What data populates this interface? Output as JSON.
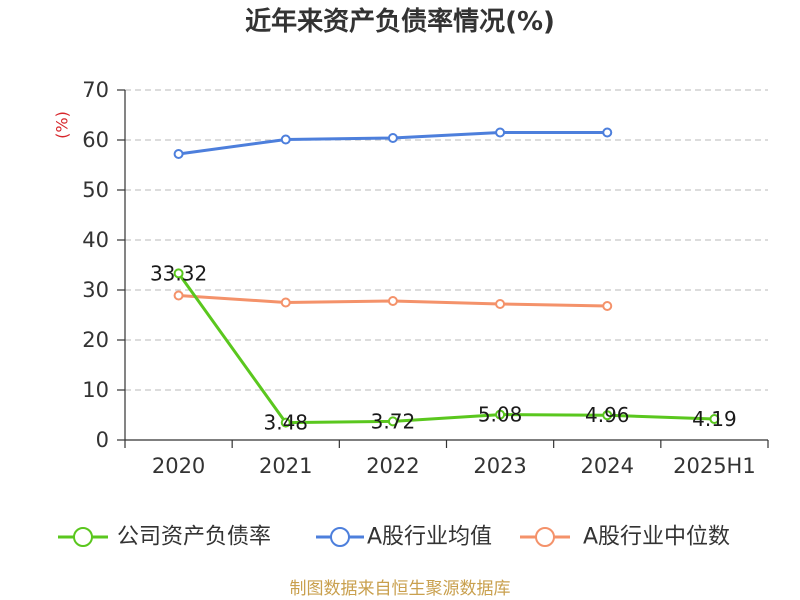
{
  "chart_data": {
    "type": "line",
    "title": "近年来资产负债率情况(%)",
    "ylabel": "(%)",
    "xlabel": "",
    "categories": [
      "2020",
      "2021",
      "2022",
      "2023",
      "2024",
      "2025H1"
    ],
    "ylim": [
      0,
      70
    ],
    "yticks": [
      0,
      10,
      20,
      30,
      40,
      50,
      60,
      70
    ],
    "grid": true,
    "legend_position": "bottom",
    "series": [
      {
        "name": "公司资产负债率",
        "color": "#5ac71e",
        "data_labels": true,
        "values": [
          33.32,
          3.48,
          3.72,
          5.08,
          4.96,
          4.19
        ]
      },
      {
        "name": "A股行业均值",
        "color": "#4d7fdc",
        "data_labels": false,
        "values": [
          57.2,
          60.1,
          60.4,
          61.5,
          61.5,
          null
        ]
      },
      {
        "name": "A股行业中位数",
        "color": "#f4926a",
        "data_labels": false,
        "values": [
          28.9,
          27.5,
          27.8,
          27.2,
          26.8,
          null
        ]
      }
    ]
  },
  "footer": {
    "source": "制图数据来自恒生聚源数据库",
    "color": "#c9a04e"
  }
}
